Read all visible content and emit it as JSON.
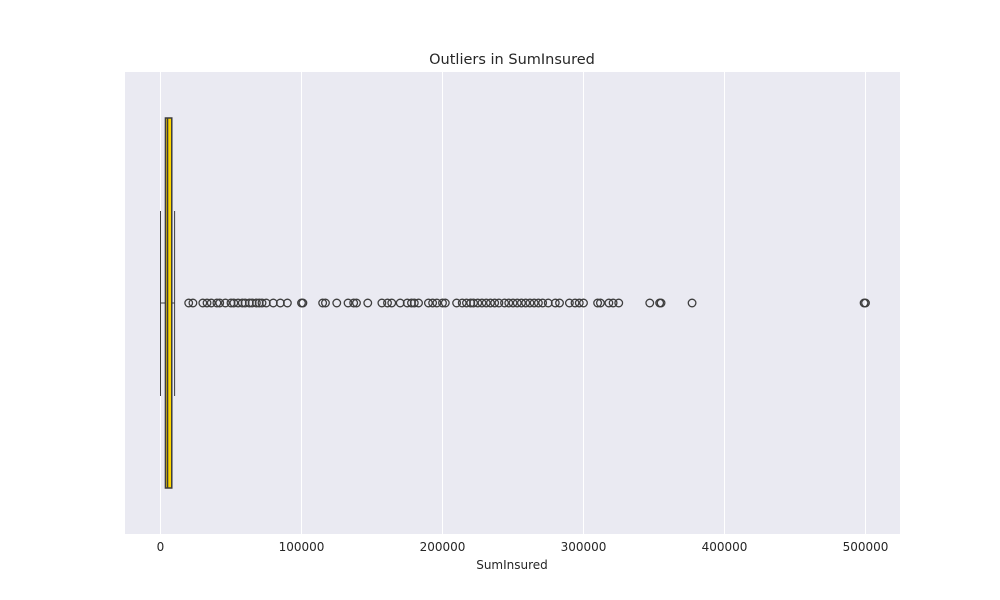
{
  "chart_data": {
    "type": "box",
    "orientation": "horizontal",
    "title": "Outliers in SumInsured",
    "xlabel": "SumInsured",
    "ylabel": "",
    "xlim": [
      -25000,
      525000
    ],
    "xticks": [
      0,
      100000,
      200000,
      300000,
      400000,
      500000
    ],
    "grid": true,
    "colors": {
      "background": "#eaeaf2",
      "grid": "#ffffff",
      "box_fill": "#ffd700",
      "box_edge": "#3d3d3d",
      "outlier_edge": "#3d3d3d"
    },
    "series": [
      {
        "whisker_low": 0,
        "q1": 3500,
        "median": 5000,
        "q3": 8000,
        "whisker_high": 10000,
        "outliers": [
          20000,
          23000,
          30000,
          33000,
          36000,
          40000,
          42000,
          46000,
          50000,
          52000,
          55000,
          58000,
          60000,
          63000,
          65000,
          68000,
          70000,
          72000,
          75000,
          80000,
          85000,
          90000,
          100000,
          101000,
          115000,
          117000,
          125000,
          133000,
          137000,
          139000,
          147000,
          157000,
          161000,
          164000,
          170000,
          175000,
          178000,
          180000,
          183000,
          190000,
          193000,
          196000,
          200000,
          202000,
          210000,
          214000,
          217000,
          220000,
          222000,
          225000,
          228000,
          231000,
          234000,
          237000,
          240000,
          244000,
          247000,
          250000,
          253000,
          256000,
          259000,
          262000,
          265000,
          268000,
          271000,
          275000,
          280000,
          283000,
          290000,
          294000,
          297000,
          300000,
          310000,
          312000,
          318000,
          321000,
          325000,
          347000,
          354000,
          355000,
          377000,
          499000,
          500000
        ]
      }
    ]
  }
}
